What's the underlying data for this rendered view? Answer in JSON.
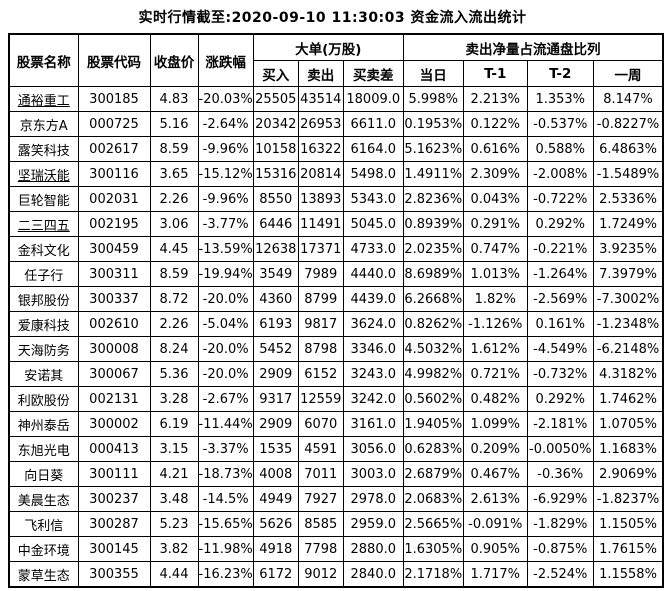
{
  "title": "实时行情截至:2020-09-10 11:30:03 资金流入流出统计",
  "colors": {
    "link_blue": "#175486",
    "text": "#000000",
    "border": "#000000",
    "background": "#ffffff"
  },
  "table": {
    "headers": {
      "stock_name": "股票名称",
      "stock_code": "股票代码",
      "close_price": "收盘价",
      "change_pct": "涨跌幅",
      "big_order_group": "大单(万股)",
      "buy": "买入",
      "sell": "卖出",
      "diff": "买卖差",
      "net_sell_group": "卖出净量占流通盘比列",
      "day": "当日",
      "t1": "T-1",
      "t2": "T-2",
      "week": "一周"
    },
    "rows": [
      {
        "name": "通裕重工",
        "code": "300185",
        "close": "4.83",
        "change": "-20.03%",
        "buy": "25505",
        "sell": "43514",
        "diff": "18009.0",
        "day": "5.998%",
        "t1": "2.213%",
        "t2": "1.353%",
        "week": "8.147%",
        "underline": true
      },
      {
        "name": "京东方A",
        "code": "000725",
        "close": "5.16",
        "change": "-2.64%",
        "buy": "20342",
        "sell": "26953",
        "diff": "6611.0",
        "day": "0.1953%",
        "t1": "0.122%",
        "t2": "-0.537%",
        "week": "-0.8227%",
        "underline": false
      },
      {
        "name": "露笑科技",
        "code": "002617",
        "close": "8.59",
        "change": "-9.96%",
        "buy": "10158",
        "sell": "16322",
        "diff": "6164.0",
        "day": "5.1623%",
        "t1": "0.616%",
        "t2": "0.588%",
        "week": "6.4863%",
        "underline": false
      },
      {
        "name": "坚瑞沃能",
        "code": "300116",
        "close": "3.65",
        "change": "-15.12%",
        "buy": "15316",
        "sell": "20814",
        "diff": "5498.0",
        "day": "1.4911%",
        "t1": "2.309%",
        "t2": "-2.008%",
        "week": "-1.5489%",
        "underline": true
      },
      {
        "name": "巨轮智能",
        "code": "002031",
        "close": "2.26",
        "change": "-9.96%",
        "buy": "8550",
        "sell": "13893",
        "diff": "5343.0",
        "day": "2.8236%",
        "t1": "0.043%",
        "t2": "-0.722%",
        "week": "2.5336%",
        "underline": false
      },
      {
        "name": "二三四五",
        "code": "002195",
        "close": "3.06",
        "change": "-3.77%",
        "buy": "6446",
        "sell": "11491",
        "diff": "5045.0",
        "day": "0.8939%",
        "t1": "0.291%",
        "t2": "0.292%",
        "week": "1.7249%",
        "underline": true
      },
      {
        "name": "金科文化",
        "code": "300459",
        "close": "4.45",
        "change": "-13.59%",
        "buy": "12638",
        "sell": "17371",
        "diff": "4733.0",
        "day": "2.0235%",
        "t1": "0.747%",
        "t2": "-0.221%",
        "week": "3.9235%",
        "underline": false
      },
      {
        "name": "任子行",
        "code": "300311",
        "close": "8.59",
        "change": "-19.94%",
        "buy": "3549",
        "sell": "7989",
        "diff": "4440.0",
        "day": "8.6989%",
        "t1": "1.013%",
        "t2": "-1.264%",
        "week": "7.3979%",
        "underline": false
      },
      {
        "name": "银邦股份",
        "code": "300337",
        "close": "8.72",
        "change": "-20.0%",
        "buy": "4360",
        "sell": "8799",
        "diff": "4439.0",
        "day": "6.2668%",
        "t1": "1.82%",
        "t2": "-2.569%",
        "week": "-7.3002%",
        "underline": false
      },
      {
        "name": "爱康科技",
        "code": "002610",
        "close": "2.26",
        "change": "-5.04%",
        "buy": "6193",
        "sell": "9817",
        "diff": "3624.0",
        "day": "0.8262%",
        "t1": "-1.126%",
        "t2": "0.161%",
        "week": "-1.2348%",
        "underline": false
      },
      {
        "name": "天海防务",
        "code": "300008",
        "close": "8.24",
        "change": "-20.0%",
        "buy": "5452",
        "sell": "8798",
        "diff": "3346.0",
        "day": "4.5032%",
        "t1": "1.612%",
        "t2": "-4.549%",
        "week": "-6.2148%",
        "underline": false
      },
      {
        "name": "安诺其",
        "code": "300067",
        "close": "5.36",
        "change": "-20.0%",
        "buy": "2909",
        "sell": "6152",
        "diff": "3243.0",
        "day": "4.9982%",
        "t1": "0.721%",
        "t2": "-0.732%",
        "week": "4.3182%",
        "underline": false
      },
      {
        "name": "利欧股份",
        "code": "002131",
        "close": "3.28",
        "change": "-2.67%",
        "buy": "9317",
        "sell": "12559",
        "diff": "3242.0",
        "day": "0.5602%",
        "t1": "0.482%",
        "t2": "0.292%",
        "week": "1.7462%",
        "underline": false
      },
      {
        "name": "神州泰岳",
        "code": "300002",
        "close": "6.19",
        "change": "-11.44%",
        "buy": "2909",
        "sell": "6070",
        "diff": "3161.0",
        "day": "1.9405%",
        "t1": "1.099%",
        "t2": "-2.181%",
        "week": "1.0705%",
        "underline": false
      },
      {
        "name": "东旭光电",
        "code": "000413",
        "close": "3.15",
        "change": "-3.37%",
        "buy": "1535",
        "sell": "4591",
        "diff": "3056.0",
        "day": "0.6283%",
        "t1": "0.209%",
        "t2": "-0.0050%",
        "week": "1.1683%",
        "underline": false
      },
      {
        "name": "向日葵",
        "code": "300111",
        "close": "4.21",
        "change": "-18.73%",
        "buy": "4008",
        "sell": "7011",
        "diff": "3003.0",
        "day": "2.6879%",
        "t1": "0.467%",
        "t2": "-0.36%",
        "week": "2.9069%",
        "underline": false
      },
      {
        "name": "美晨生态",
        "code": "300237",
        "close": "3.48",
        "change": "-14.5%",
        "buy": "4949",
        "sell": "7927",
        "diff": "2978.0",
        "day": "2.0683%",
        "t1": "2.613%",
        "t2": "-6.929%",
        "week": "-1.8237%",
        "underline": false
      },
      {
        "name": "飞利信",
        "code": "300287",
        "close": "5.23",
        "change": "-15.65%",
        "buy": "5626",
        "sell": "8585",
        "diff": "2959.0",
        "day": "2.5665%",
        "t1": "-0.091%",
        "t2": "-1.829%",
        "week": "1.1505%",
        "underline": false
      },
      {
        "name": "中金环境",
        "code": "300145",
        "close": "3.82",
        "change": "-11.98%",
        "buy": "4918",
        "sell": "7798",
        "diff": "2880.0",
        "day": "1.6305%",
        "t1": "0.905%",
        "t2": "-0.875%",
        "week": "1.7615%",
        "underline": false
      },
      {
        "name": "蒙草生态",
        "code": "300355",
        "close": "4.44",
        "change": "-16.23%",
        "buy": "6172",
        "sell": "9012",
        "diff": "2840.0",
        "day": "2.1718%",
        "t1": "1.717%",
        "t2": "-2.524%",
        "week": "1.1558%",
        "underline": false
      }
    ]
  }
}
